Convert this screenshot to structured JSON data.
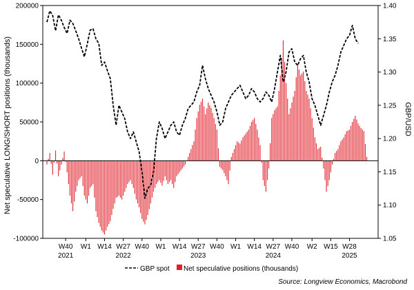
{
  "chart_data": {
    "type": "bar",
    "title": "",
    "ylabel_left": "Net speculative LONG/SHORT positions (thousands)",
    "ylabel_right": "GBP/USD",
    "ylim_left": [
      -100000,
      200000
    ],
    "ylim_right": [
      1.05,
      1.4
    ],
    "yticks_left": [
      "200000",
      "150000",
      "100000",
      "50000",
      "0",
      "-50000",
      "-100000"
    ],
    "yticks_left_values": [
      200000,
      150000,
      100000,
      50000,
      0,
      -50000,
      -100000
    ],
    "yticks_right": [
      "1.40",
      "1.35",
      "1.30",
      "1.25",
      "1.20",
      "1.15",
      "1.10",
      "1.05"
    ],
    "yticks_right_values": [
      1.4,
      1.35,
      1.3,
      1.25,
      1.2,
      1.15,
      1.1,
      1.05
    ],
    "x_week_range": [
      0,
      227
    ],
    "xticks": [
      {
        "week": 13,
        "label": "W40"
      },
      {
        "week": 27,
        "label": "W1"
      },
      {
        "week": 40,
        "label": "W14"
      },
      {
        "week": 53,
        "label": "W27"
      },
      {
        "week": 66,
        "label": "W40"
      },
      {
        "week": 79,
        "label": "W1"
      },
      {
        "week": 92,
        "label": "W14"
      },
      {
        "week": 105,
        "label": "W27"
      },
      {
        "week": 118,
        "label": "W40"
      },
      {
        "week": 131,
        "label": "W1"
      },
      {
        "week": 144,
        "label": "W14"
      },
      {
        "week": 157,
        "label": "W27"
      },
      {
        "week": 170,
        "label": "W40"
      },
      {
        "week": 184,
        "label": "W2"
      },
      {
        "week": 197,
        "label": "W15"
      },
      {
        "week": 210,
        "label": "W28"
      }
    ],
    "year_labels": [
      {
        "week": 13,
        "label": "2021"
      },
      {
        "week": 53,
        "label": "2022"
      },
      {
        "week": 105,
        "label": "2023"
      },
      {
        "week": 157,
        "label": "2024"
      },
      {
        "week": 210,
        "label": "2025"
      }
    ],
    "grid": false,
    "legend_position": "bottom-center",
    "legend": [
      {
        "name": "GBP spot",
        "style": "dashed-line",
        "color": "#000000"
      },
      {
        "name": "Net speculative positions (thousands)",
        "style": "bar",
        "color": "#e0202a"
      }
    ],
    "source": "Source: Longview Economics, Macrobond",
    "series": [
      {
        "name": "Net speculative positions (thousands)",
        "axis": "left",
        "color": "#e0202a",
        "anchors": [
          [
            0,
            -5000
          ],
          [
            2,
            10000
          ],
          [
            4,
            -18000
          ],
          [
            6,
            13000
          ],
          [
            8,
            -20000
          ],
          [
            10,
            -5000
          ],
          [
            12,
            12000
          ],
          [
            14,
            -15000
          ],
          [
            16,
            -45000
          ],
          [
            18,
            -65000
          ],
          [
            20,
            -40000
          ],
          [
            22,
            -25000
          ],
          [
            24,
            -20000
          ],
          [
            26,
            -45000
          ],
          [
            28,
            -55000
          ],
          [
            30,
            -35000
          ],
          [
            32,
            -30000
          ],
          [
            34,
            -65000
          ],
          [
            36,
            -80000
          ],
          [
            38,
            -90000
          ],
          [
            40,
            -95000
          ],
          [
            42,
            -85000
          ],
          [
            44,
            -78000
          ],
          [
            46,
            -62000
          ],
          [
            48,
            -48000
          ],
          [
            50,
            -45000
          ],
          [
            52,
            -50000
          ],
          [
            54,
            -40000
          ],
          [
            56,
            -30000
          ],
          [
            58,
            -25000
          ],
          [
            60,
            -35000
          ],
          [
            62,
            -50000
          ],
          [
            64,
            -60000
          ],
          [
            66,
            -75000
          ],
          [
            68,
            -82000
          ],
          [
            70,
            -70000
          ],
          [
            72,
            -55000
          ],
          [
            74,
            -40000
          ],
          [
            76,
            -30000
          ],
          [
            78,
            -25000
          ],
          [
            80,
            -32000
          ],
          [
            82,
            -20000
          ],
          [
            84,
            -30000
          ],
          [
            86,
            -25000
          ],
          [
            88,
            -35000
          ],
          [
            90,
            -20000
          ],
          [
            92,
            -15000
          ],
          [
            94,
            -10000
          ],
          [
            96,
            -5000
          ],
          [
            98,
            5000
          ],
          [
            100,
            15000
          ],
          [
            102,
            25000
          ],
          [
            104,
            55000
          ],
          [
            106,
            72000
          ],
          [
            108,
            80000
          ],
          [
            110,
            60000
          ],
          [
            112,
            75000
          ],
          [
            114,
            68000
          ],
          [
            116,
            55000
          ],
          [
            118,
            40000
          ],
          [
            120,
            -8000
          ],
          [
            122,
            -12000
          ],
          [
            124,
            -20000
          ],
          [
            126,
            -30000
          ],
          [
            128,
            5000
          ],
          [
            130,
            15000
          ],
          [
            132,
            25000
          ],
          [
            134,
            22000
          ],
          [
            136,
            30000
          ],
          [
            138,
            35000
          ],
          [
            140,
            40000
          ],
          [
            142,
            50000
          ],
          [
            144,
            55000
          ],
          [
            146,
            40000
          ],
          [
            148,
            20000
          ],
          [
            150,
            -25000
          ],
          [
            152,
            -40000
          ],
          [
            154,
            -10000
          ],
          [
            156,
            55000
          ],
          [
            158,
            65000
          ],
          [
            160,
            70000
          ],
          [
            162,
            110000
          ],
          [
            164,
            155000
          ],
          [
            166,
            100000
          ],
          [
            168,
            60000
          ],
          [
            170,
            75000
          ],
          [
            172,
            90000
          ],
          [
            174,
            125000
          ],
          [
            176,
            110000
          ],
          [
            178,
            115000
          ],
          [
            180,
            90000
          ],
          [
            182,
            80000
          ],
          [
            184,
            55000
          ],
          [
            186,
            30000
          ],
          [
            188,
            15000
          ],
          [
            190,
            18000
          ],
          [
            192,
            -10000
          ],
          [
            194,
            -40000
          ],
          [
            196,
            -25000
          ],
          [
            198,
            -5000
          ],
          [
            200,
            10000
          ],
          [
            202,
            15000
          ],
          [
            204,
            25000
          ],
          [
            206,
            30000
          ],
          [
            208,
            38000
          ],
          [
            210,
            40000
          ],
          [
            212,
            50000
          ],
          [
            214,
            58000
          ],
          [
            216,
            48000
          ],
          [
            218,
            42000
          ],
          [
            220,
            38000
          ],
          [
            222,
            5000
          ]
        ]
      },
      {
        "name": "GBP spot",
        "axis": "right",
        "color": "#000000",
        "style": "dashed",
        "anchors": [
          [
            0,
            1.375
          ],
          [
            2,
            1.392
          ],
          [
            4,
            1.385
          ],
          [
            6,
            1.362
          ],
          [
            8,
            1.386
          ],
          [
            10,
            1.378
          ],
          [
            12,
            1.367
          ],
          [
            14,
            1.358
          ],
          [
            16,
            1.378
          ],
          [
            18,
            1.373
          ],
          [
            20,
            1.362
          ],
          [
            22,
            1.35
          ],
          [
            24,
            1.336
          ],
          [
            26,
            1.323
          ],
          [
            28,
            1.342
          ],
          [
            30,
            1.363
          ],
          [
            32,
            1.365
          ],
          [
            34,
            1.35
          ],
          [
            36,
            1.343
          ],
          [
            38,
            1.31
          ],
          [
            40,
            1.315
          ],
          [
            42,
            1.302
          ],
          [
            44,
            1.29
          ],
          [
            46,
            1.25
          ],
          [
            48,
            1.22
          ],
          [
            50,
            1.25
          ],
          [
            52,
            1.24
          ],
          [
            54,
            1.23
          ],
          [
            56,
            1.21
          ],
          [
            58,
            1.2
          ],
          [
            60,
            1.21
          ],
          [
            62,
            1.195
          ],
          [
            64,
            1.18
          ],
          [
            66,
            1.15
          ],
          [
            68,
            1.11
          ],
          [
            70,
            1.125
          ],
          [
            72,
            1.13
          ],
          [
            74,
            1.15
          ],
          [
            76,
            1.2
          ],
          [
            78,
            1.225
          ],
          [
            80,
            1.215
          ],
          [
            82,
            1.2
          ],
          [
            84,
            1.21
          ],
          [
            86,
            1.22
          ],
          [
            88,
            1.225
          ],
          [
            90,
            1.21
          ],
          [
            92,
            1.205
          ],
          [
            94,
            1.22
          ],
          [
            96,
            1.23
          ],
          [
            98,
            1.245
          ],
          [
            100,
            1.25
          ],
          [
            102,
            1.255
          ],
          [
            104,
            1.27
          ],
          [
            106,
            1.28
          ],
          [
            108,
            1.31
          ],
          [
            110,
            1.29
          ],
          [
            112,
            1.275
          ],
          [
            114,
            1.265
          ],
          [
            116,
            1.255
          ],
          [
            118,
            1.24
          ],
          [
            120,
            1.22
          ],
          [
            122,
            1.225
          ],
          [
            124,
            1.245
          ],
          [
            126,
            1.255
          ],
          [
            128,
            1.265
          ],
          [
            130,
            1.27
          ],
          [
            132,
            1.275
          ],
          [
            134,
            1.28
          ],
          [
            136,
            1.27
          ],
          [
            138,
            1.26
          ],
          [
            140,
            1.265
          ],
          [
            142,
            1.275
          ],
          [
            144,
            1.27
          ],
          [
            146,
            1.26
          ],
          [
            148,
            1.255
          ],
          [
            150,
            1.26
          ],
          [
            152,
            1.27
          ],
          [
            154,
            1.265
          ],
          [
            156,
            1.255
          ],
          [
            158,
            1.275
          ],
          [
            160,
            1.3
          ],
          [
            162,
            1.325
          ],
          [
            164,
            1.285
          ],
          [
            166,
            1.3
          ],
          [
            168,
            1.33
          ],
          [
            170,
            1.335
          ],
          [
            172,
            1.315
          ],
          [
            174,
            1.31
          ],
          [
            176,
            1.32
          ],
          [
            178,
            1.325
          ],
          [
            180,
            1.3
          ],
          [
            182,
            1.285
          ],
          [
            184,
            1.26
          ],
          [
            186,
            1.25
          ],
          [
            188,
            1.235
          ],
          [
            190,
            1.22
          ],
          [
            192,
            1.235
          ],
          [
            194,
            1.25
          ],
          [
            196,
            1.27
          ],
          [
            198,
            1.285
          ],
          [
            200,
            1.295
          ],
          [
            202,
            1.31
          ],
          [
            204,
            1.33
          ],
          [
            206,
            1.34
          ],
          [
            208,
            1.35
          ],
          [
            210,
            1.355
          ],
          [
            212,
            1.37
          ],
          [
            214,
            1.35
          ],
          [
            216,
            1.343
          ]
        ]
      }
    ]
  }
}
